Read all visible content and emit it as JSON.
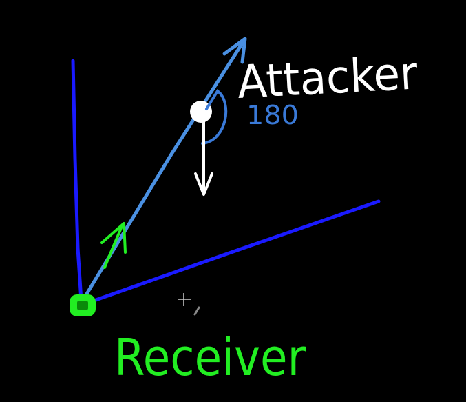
{
  "labels": {
    "attacker": "Attacker",
    "receiver": "Receiver",
    "angle": "180"
  },
  "colors": {
    "background": "#000000",
    "field_lines": "#1a1aff",
    "attack_vector": "#4a90e2",
    "receiver": "#22ee22",
    "attacker_label": "#ffffff",
    "angle_label": "#3a7ad8",
    "ball": "#ffffff"
  },
  "icons": {
    "cursor": "crosshair-cursor-icon"
  }
}
